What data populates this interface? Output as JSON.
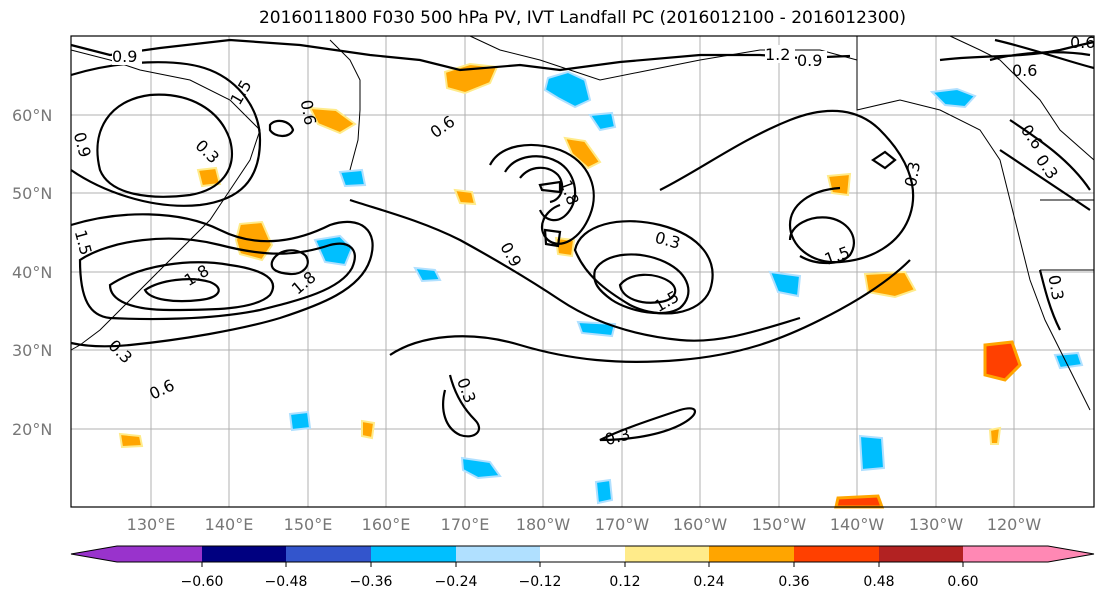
{
  "title": "2016011800 F030 500 hPa PV, IVT Landfall PC (2016012100 - 2016012300)",
  "map": {
    "projection": "PlateCarree",
    "lat_labels": [
      "60°N",
      "50°N",
      "40°N",
      "30°N",
      "20°N"
    ],
    "lon_labels": [
      "130°E",
      "140°E",
      "150°E",
      "160°E",
      "170°E",
      "180°W",
      "170°W",
      "160°W",
      "150°W",
      "140°W",
      "130°W",
      "120°W"
    ],
    "grid": true
  },
  "contours": {
    "variable": "500 hPa PV",
    "labels": [
      "0.9",
      "1.2",
      "0.9",
      "0.6",
      "0.3",
      "1.5",
      "1.8",
      "0.3",
      "0.6",
      "0.9",
      "1.8",
      "0.3",
      "1.5",
      "0.3",
      "1.5",
      "1.8",
      "0.9",
      "0.3",
      "0.6",
      "0.3",
      "0.3",
      "0.6",
      "0.6",
      "0.3",
      "1.5",
      "0.6"
    ]
  },
  "colorbar": {
    "ticks": [
      "−0.60",
      "−0.48",
      "−0.36",
      "−0.24",
      "−0.12",
      "0.12",
      "0.24",
      "0.36",
      "0.48",
      "0.60"
    ],
    "colors": [
      "#9933cc",
      "#000080",
      "#3355cc",
      "#00bfff",
      "#b0e0ff",
      "#ffffff",
      "#ffeb8a",
      "#ffa500",
      "#ff4000",
      "#b22222",
      "#ff88b4"
    ],
    "extend": "both"
  }
}
